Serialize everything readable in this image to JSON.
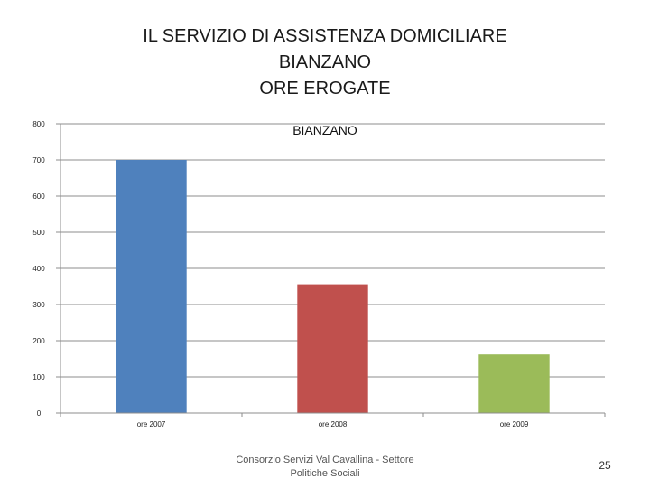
{
  "slide": {
    "title_lines": [
      "IL SERVIZIO DI ASSISTENZA DOMICILIARE",
      "BIANZANO",
      "ORE EROGATE"
    ],
    "footer": "Consorzio Servizi Val Cavallina - Settore Politiche Sociali",
    "page_number": "25"
  },
  "chart_data": {
    "type": "bar",
    "title": "BIANZANO",
    "categories": [
      "ore 2007",
      "ore 2008",
      "ore 2009"
    ],
    "values": [
      700,
      356,
      162
    ],
    "colors": [
      "#4F81BD",
      "#C0504D",
      "#9BBB59"
    ],
    "ylim": [
      0,
      800
    ],
    "yticks": [
      0,
      100,
      200,
      300,
      400,
      500,
      600,
      700,
      800
    ],
    "grid": true,
    "legend": "none"
  }
}
